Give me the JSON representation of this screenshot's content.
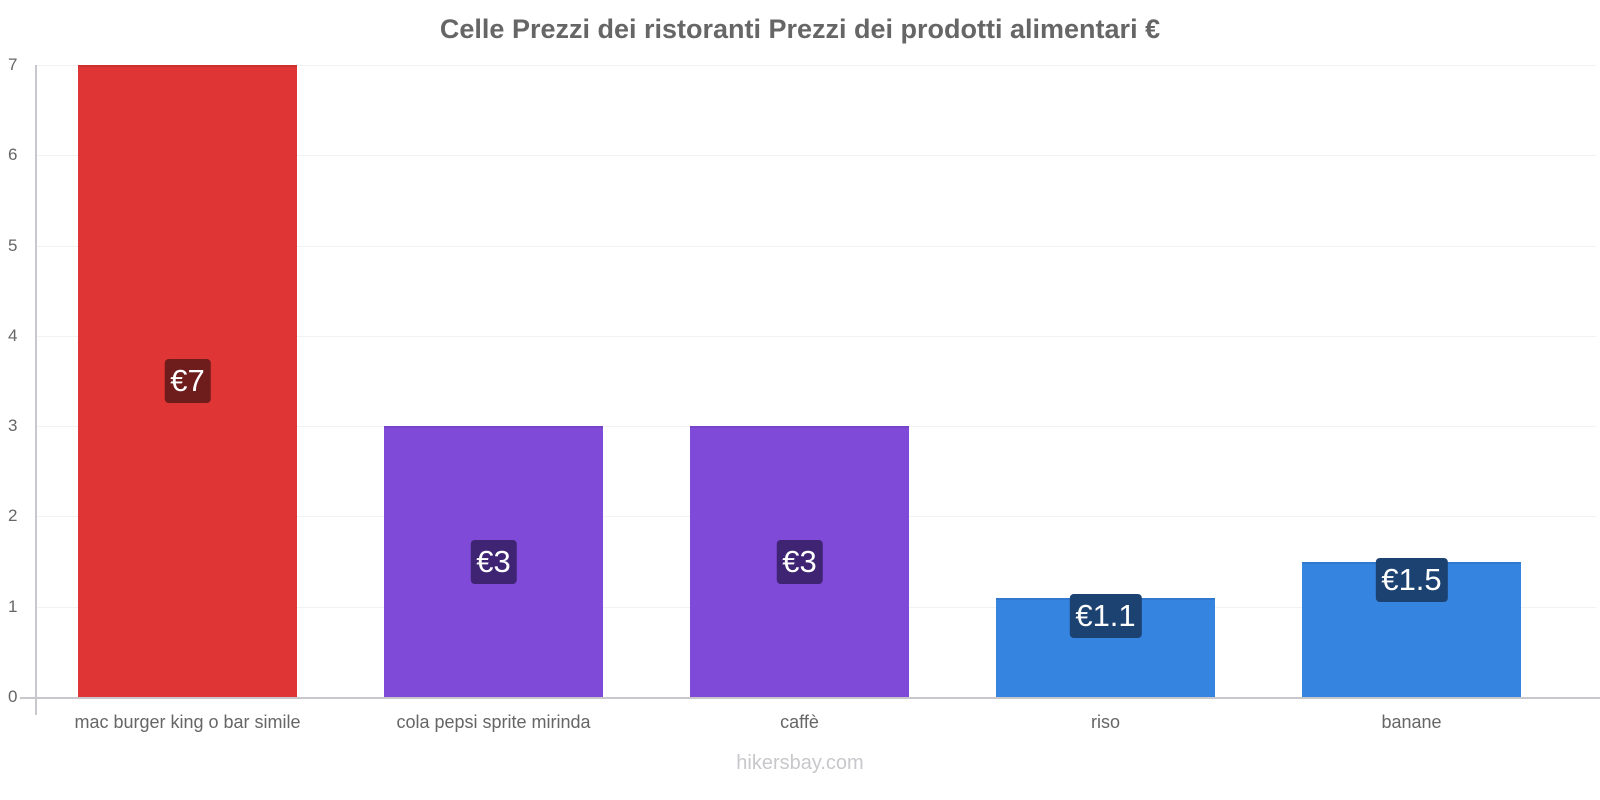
{
  "chart_data": {
    "type": "bar",
    "title": "Celle Prezzi dei ristoranti Prezzi dei prodotti alimentari €",
    "xlabel": "",
    "ylabel": "",
    "ylim": [
      0,
      7
    ],
    "yticks": [
      0,
      1,
      2,
      3,
      4,
      5,
      6,
      7
    ],
    "grid": true,
    "legend": null,
    "categories": [
      "mac burger king o bar simile",
      "cola pepsi sprite mirinda",
      "caffè",
      "riso",
      "banane"
    ],
    "values": [
      7,
      3,
      3,
      1.1,
      1.5
    ],
    "value_labels": [
      "€7",
      "€3",
      "€3",
      "€1.1",
      "€1.5"
    ],
    "bar_colors": [
      "#e03535",
      "#7f4ad8",
      "#7f4ad8",
      "#3584e0",
      "#3584e0"
    ],
    "label_box_colors": [
      "#6e1c1c",
      "#3f2473",
      "#3f2473",
      "#1c4272",
      "#1c4272"
    ]
  },
  "watermark": "hikersbay.com"
}
